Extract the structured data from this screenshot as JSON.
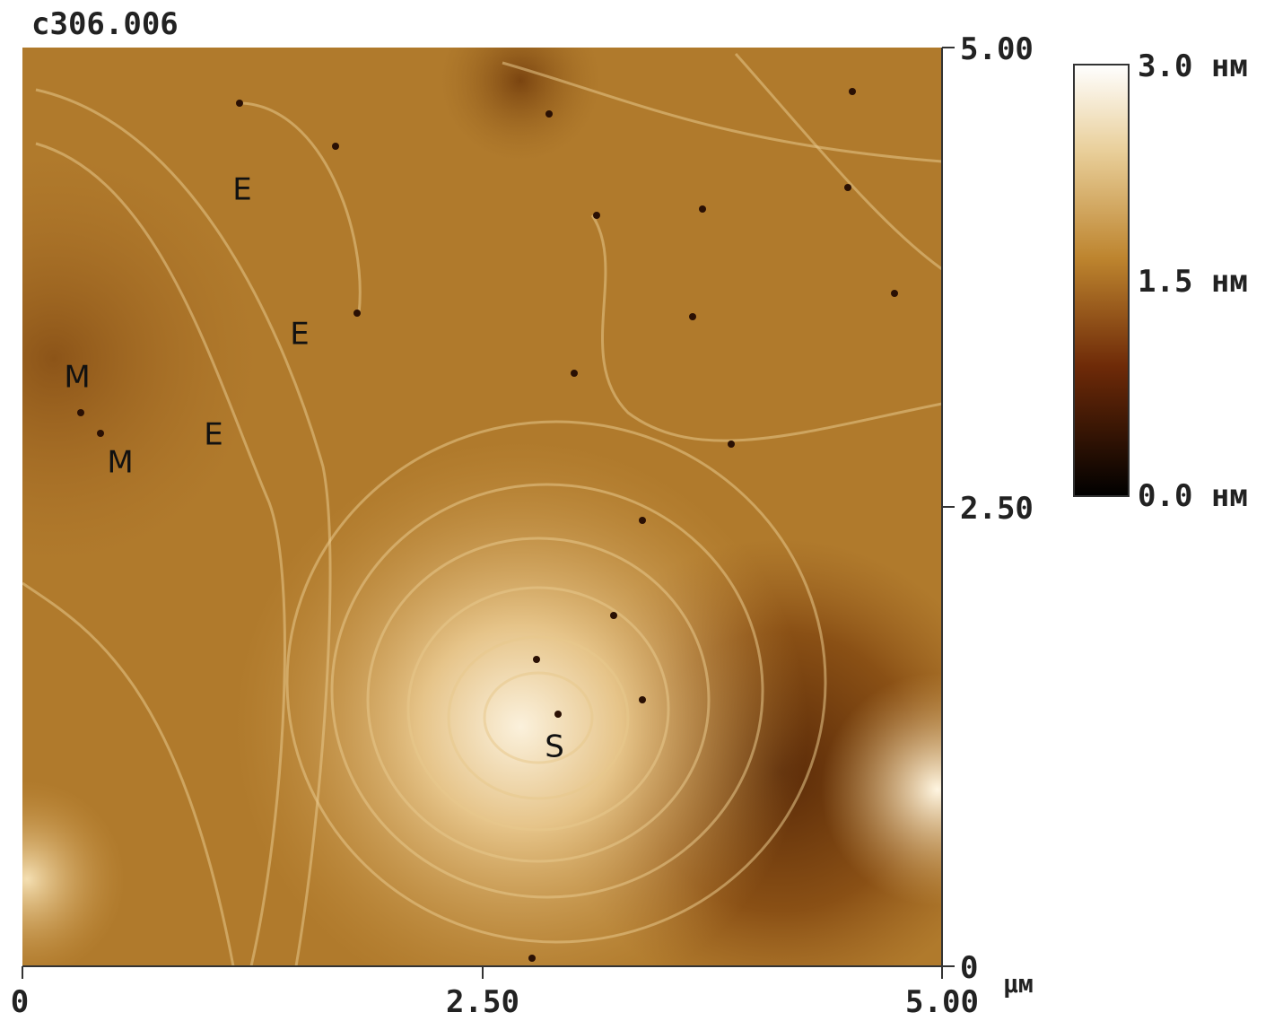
{
  "header": {
    "title": "c306.006"
  },
  "x_axis": {
    "ticks": [
      "0",
      "2.50",
      "5.00"
    ],
    "unit": "μм"
  },
  "y_axis": {
    "ticks": [
      "5.00",
      "2.50",
      "0"
    ]
  },
  "colorbar": {
    "labels": [
      "3.0 нм",
      "1.5 нм",
      "0.0 нм"
    ]
  },
  "annotations": [
    "E",
    "E",
    "M",
    "E",
    "M",
    "S"
  ]
}
